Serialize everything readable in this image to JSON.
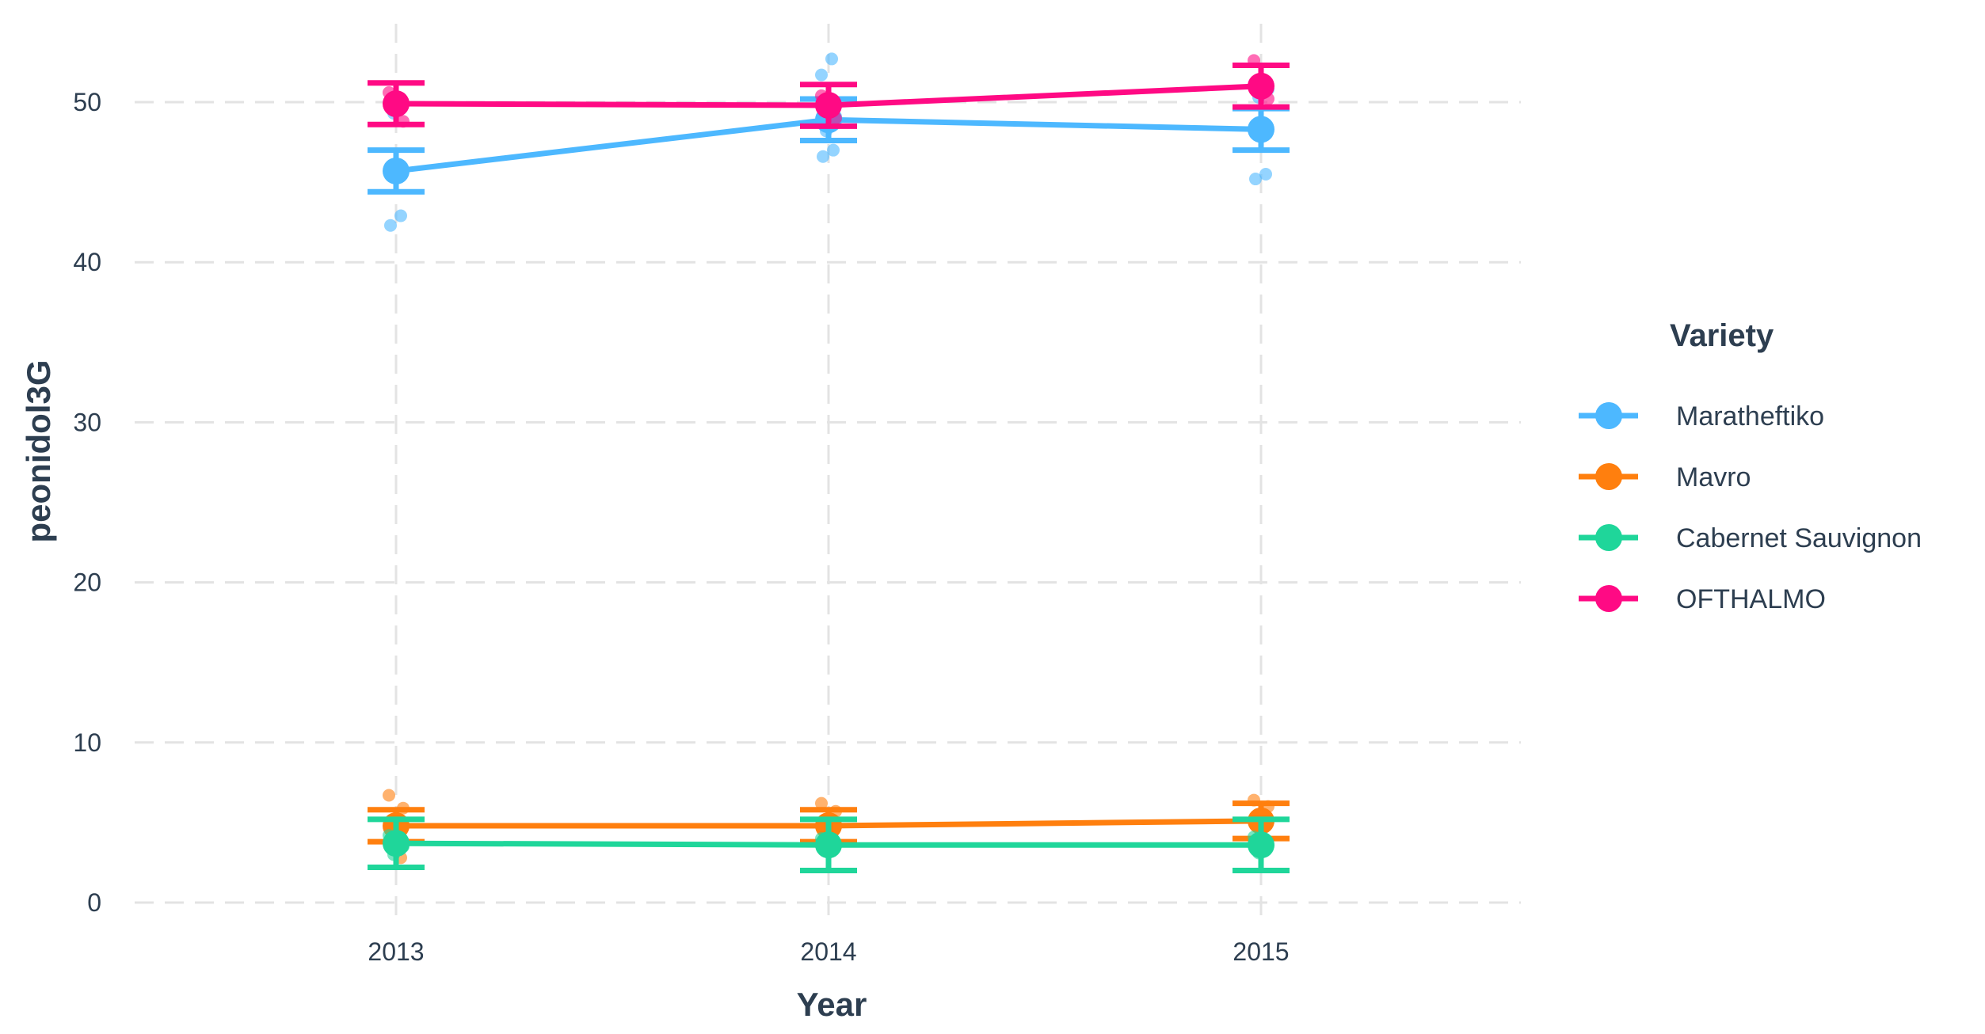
{
  "chart_data": {
    "type": "line",
    "xlabel": "Year",
    "ylabel": "peonidol3G",
    "x": [
      "2013",
      "2014",
      "2015"
    ],
    "ylim": [
      0,
      54
    ],
    "yticks": [
      0,
      10,
      20,
      30,
      40,
      50
    ],
    "grid": true,
    "error_bars": true,
    "legend": {
      "title": "Variety",
      "position": "right"
    },
    "series": [
      {
        "name": "Maratheftiko",
        "color": "#4db8ff",
        "values": [
          45.7,
          48.9,
          48.3
        ],
        "err": [
          1.3,
          1.3,
          1.3
        ],
        "points": [
          [
            42.3,
            42.9,
            49.3
          ],
          [
            46.6,
            47.0,
            48.2,
            49.1,
            51.7,
            52.7
          ],
          [
            45.2,
            45.5,
            50.3,
            50.8
          ]
        ]
      },
      {
        "name": "Mavro",
        "color": "#ff7f0e",
        "values": [
          4.8,
          4.8,
          5.1
        ],
        "err": [
          1.0,
          1.0,
          1.1
        ],
        "points": [
          [
            2.8,
            4.2,
            5.9,
            6.7
          ],
          [
            3.5,
            4.1,
            5.7,
            6.2
          ],
          [
            3.9,
            5.0,
            6.0,
            6.4
          ]
        ]
      },
      {
        "name": "Cabernet Sauvignon",
        "color": "#1fd69a",
        "values": [
          3.7,
          3.6,
          3.6
        ],
        "err": [
          1.5,
          1.6,
          1.6
        ],
        "points": [
          [
            3.0,
            3.5,
            4.2
          ],
          [
            3.2,
            3.6,
            4.0
          ],
          [
            3.1,
            3.6,
            4.1
          ]
        ]
      },
      {
        "name": "OFTHALMO",
        "color": "#ff0a84",
        "values": [
          49.9,
          49.8,
          51.0
        ],
        "err": [
          1.3,
          1.3,
          1.3
        ],
        "points": [
          [
            48.8,
            50.6
          ],
          [
            49.0,
            50.4
          ],
          [
            50.2,
            52.6
          ]
        ]
      }
    ]
  }
}
